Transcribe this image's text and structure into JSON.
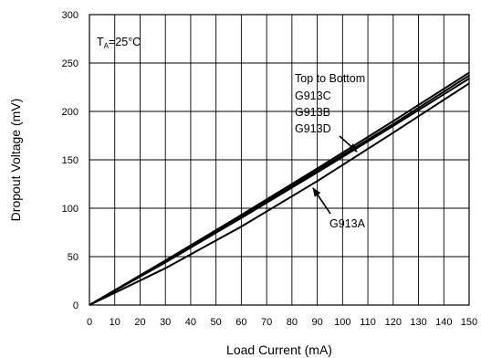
{
  "chart_data": {
    "type": "line",
    "xlabel": "Load Current (mA)",
    "ylabel": "Dropout Voltage (mV)",
    "xlim": [
      0,
      150
    ],
    "ylim": [
      0,
      300
    ],
    "x_ticks": [
      0,
      10,
      20,
      30,
      40,
      50,
      60,
      70,
      80,
      90,
      100,
      110,
      120,
      130,
      140,
      150
    ],
    "y_ticks": [
      0,
      50,
      100,
      150,
      200,
      250,
      300
    ],
    "grid": true,
    "condition": {
      "main": "T",
      "sub": "A",
      "rest": "=25°C"
    },
    "series": [
      {
        "name": "G913C",
        "x": [
          0,
          30,
          60,
          90,
          120,
          150
        ],
        "y": [
          0,
          46,
          93,
          141,
          190,
          240
        ]
      },
      {
        "name": "G913B",
        "x": [
          0,
          30,
          60,
          90,
          120,
          150
        ],
        "y": [
          0,
          45,
          91,
          139,
          187,
          237
        ]
      },
      {
        "name": "G913D",
        "x": [
          0,
          30,
          60,
          90,
          120,
          150
        ],
        "y": [
          0,
          44,
          90,
          137,
          185,
          234
        ]
      },
      {
        "name": "G913A",
        "x": [
          0,
          30,
          60,
          90,
          120,
          150
        ],
        "y": [
          0,
          38,
          81,
          128,
          178,
          229
        ]
      }
    ],
    "annotations": [
      {
        "lines": [
          "Top to Bottom",
          "G913C",
          "G913B",
          "G913D"
        ],
        "points_to": "G913D"
      },
      {
        "lines": [
          "G913A"
        ],
        "points_to": "G913A"
      }
    ]
  }
}
